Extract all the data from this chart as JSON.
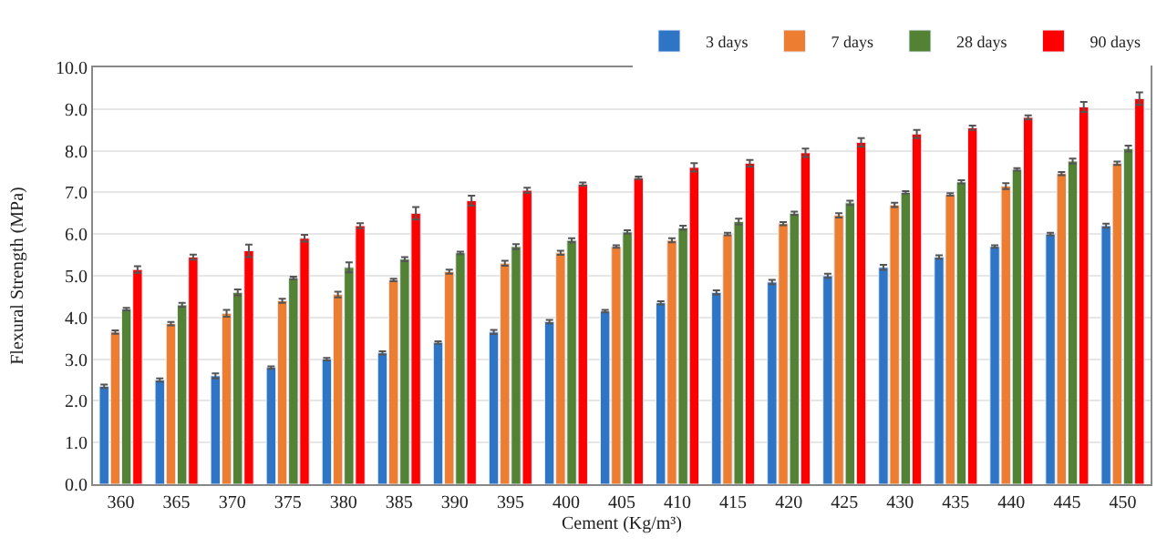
{
  "chart_data": {
    "type": "bar",
    "xlabel": "Cement (Kg/m³)",
    "ylabel": "Flexural Strength (MPa)",
    "categories": [
      "360",
      "365",
      "370",
      "375",
      "380",
      "385",
      "390",
      "395",
      "400",
      "405",
      "410",
      "415",
      "420",
      "425",
      "430",
      "435",
      "440",
      "445",
      "450"
    ],
    "series": [
      {
        "name": "3 days",
        "color": "#2e75c6",
        "values": [
          2.35,
          2.5,
          2.6,
          2.8,
          3.0,
          3.15,
          3.4,
          3.65,
          3.9,
          4.15,
          4.35,
          4.6,
          4.85,
          5.0,
          5.2,
          5.45,
          5.7,
          6.0,
          6.2
        ],
        "errors": [
          0.04,
          0.04,
          0.06,
          0.03,
          0.03,
          0.04,
          0.03,
          0.05,
          0.04,
          0.03,
          0.04,
          0.05,
          0.05,
          0.05,
          0.06,
          0.04,
          0.03,
          0.03,
          0.05
        ]
      },
      {
        "name": "7 days",
        "color": "#ed7d31",
        "values": [
          3.65,
          3.85,
          4.1,
          4.4,
          4.55,
          4.9,
          5.1,
          5.3,
          5.55,
          5.7,
          5.85,
          6.0,
          6.25,
          6.45,
          6.7,
          6.95,
          7.15,
          7.45,
          7.7
        ],
        "errors": [
          0.04,
          0.04,
          0.08,
          0.05,
          0.07,
          0.03,
          0.05,
          0.06,
          0.05,
          0.03,
          0.05,
          0.03,
          0.04,
          0.05,
          0.05,
          0.03,
          0.07,
          0.04,
          0.04
        ]
      },
      {
        "name": "28 days",
        "color": "#548235",
        "values": [
          4.2,
          4.3,
          4.6,
          4.95,
          5.2,
          5.4,
          5.55,
          5.7,
          5.85,
          6.05,
          6.15,
          6.3,
          6.5,
          6.75,
          7.0,
          7.25,
          7.55,
          7.75,
          8.05
        ],
        "errors": [
          0.03,
          0.05,
          0.07,
          0.03,
          0.12,
          0.05,
          0.03,
          0.06,
          0.05,
          0.04,
          0.05,
          0.07,
          0.04,
          0.05,
          0.03,
          0.04,
          0.03,
          0.06,
          0.07
        ]
      },
      {
        "name": "90 days",
        "color": "#ff0000",
        "values": [
          5.15,
          5.45,
          5.6,
          5.9,
          6.2,
          6.5,
          6.8,
          7.05,
          7.2,
          7.35,
          7.6,
          7.7,
          7.95,
          8.2,
          8.4,
          8.55,
          8.8,
          9.05,
          9.25
        ],
        "errors": [
          0.08,
          0.06,
          0.15,
          0.08,
          0.06,
          0.15,
          0.12,
          0.06,
          0.04,
          0.03,
          0.1,
          0.08,
          0.1,
          0.1,
          0.1,
          0.05,
          0.05,
          0.12,
          0.15
        ]
      }
    ],
    "ylim": [
      0,
      10
    ],
    "yticks": [
      {
        "value": 0,
        "label": "0.0"
      },
      {
        "value": 1,
        "label": "1.0"
      },
      {
        "value": 2,
        "label": "2.0"
      },
      {
        "value": 3,
        "label": "3.0"
      },
      {
        "value": 4,
        "label": "4.0"
      },
      {
        "value": 5,
        "label": "5.0"
      },
      {
        "value": 6,
        "label": "6.0"
      },
      {
        "value": 7,
        "label": "7.0"
      },
      {
        "value": 8,
        "label": "8.0"
      },
      {
        "value": 9,
        "label": "9.0"
      },
      {
        "value": 10,
        "label": "10.0"
      }
    ],
    "grid": "y",
    "legend": "top right"
  }
}
